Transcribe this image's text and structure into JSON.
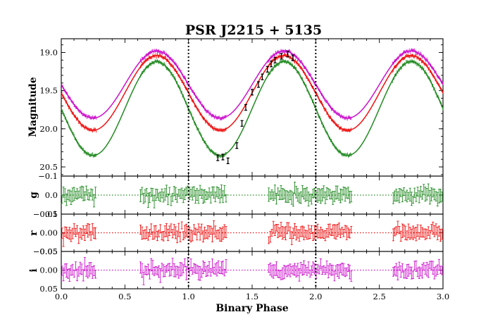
{
  "chart_data": {
    "type": "line",
    "title": "PSR J2215 + 5135",
    "xlabel": "Binary Phase",
    "xlim": [
      0.0,
      3.0
    ],
    "x_ticks": [
      "0.0",
      "0.5",
      "1.0",
      "1.5",
      "2.0",
      "2.5",
      "3.0"
    ],
    "phase_markers": [
      1.0,
      2.0
    ],
    "model": {
      "description": "light-curve model, period 1 in phase",
      "series": [
        {
          "name": "g",
          "color": "#228B22",
          "min_mag": 20.35,
          "max_mag": 19.12,
          "min_phase": 0.25,
          "max_phase": 0.75
        },
        {
          "name": "r",
          "color": "#EE1111",
          "min_mag": 20.02,
          "max_mag": 19.04,
          "min_phase": 0.25,
          "max_phase": 0.75
        },
        {
          "name": "i",
          "color": "#CC11CC",
          "min_mag": 19.86,
          "max_mag": 18.98,
          "min_phase": 0.25,
          "max_phase": 0.75
        }
      ]
    },
    "observed_phase_ranges": [
      [
        0.0,
        0.28
      ],
      [
        0.62,
        1.3
      ],
      [
        1.62,
        2.28
      ],
      [
        2.6,
        3.0
      ]
    ],
    "black_points": [
      {
        "x": 1.23,
        "y": 20.38
      },
      {
        "x": 1.27,
        "y": 20.37
      },
      {
        "x": 1.31,
        "y": 20.42
      },
      {
        "x": 1.38,
        "y": 20.22
      },
      {
        "x": 1.42,
        "y": 19.93
      },
      {
        "x": 1.45,
        "y": 19.72
      },
      {
        "x": 1.5,
        "y": 19.52
      },
      {
        "x": 1.55,
        "y": 19.42
      },
      {
        "x": 1.58,
        "y": 19.32
      },
      {
        "x": 1.62,
        "y": 19.22
      },
      {
        "x": 1.65,
        "y": 19.15
      },
      {
        "x": 1.68,
        "y": 19.1
      },
      {
        "x": 1.73,
        "y": 19.05
      },
      {
        "x": 1.78,
        "y": 19.02
      },
      {
        "x": 1.82,
        "y": 19.07
      }
    ],
    "panels": [
      {
        "name": "main",
        "ylabel": "Magnitude",
        "ylim": [
          20.62,
          18.82
        ],
        "y_ticks": [
          "19.0",
          "19.5",
          "20.0",
          "20.5"
        ]
      },
      {
        "name": "g",
        "ylabel": "g",
        "ylim": [
          0.1,
          -0.1
        ],
        "y_ticks": [
          "−0.1",
          "0.0",
          "0.1"
        ],
        "noise": 0.022,
        "color": "#228B22"
      },
      {
        "name": "r",
        "ylabel": "r",
        "ylim": [
          0.05,
          -0.05
        ],
        "y_ticks": [
          "−0.05",
          "0.00",
          "0.05"
        ],
        "noise": 0.011,
        "color": "#EE1111"
      },
      {
        "name": "i",
        "ylabel": "i",
        "ylim": [
          0.05,
          -0.05
        ],
        "y_ticks": [
          "−0.05",
          "0.00",
          "0.05"
        ],
        "noise": 0.011,
        "color": "#CC11CC"
      }
    ]
  }
}
